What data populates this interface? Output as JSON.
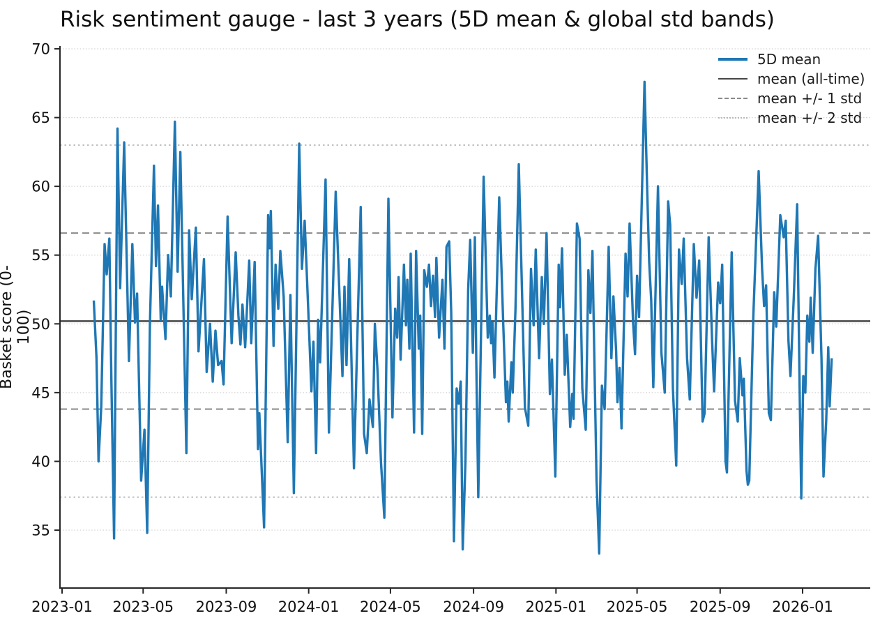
{
  "chart_data": {
    "type": "line",
    "title": "Risk sentiment gauge - last 3 years (5D mean & global std bands)",
    "ylabel": "Basket score (0-100)",
    "xlabel": "",
    "grid": "horizontal-dotted",
    "legend_position": "upper right",
    "ylim": [
      30.9,
      70.4
    ],
    "y_ticks": [
      35,
      40,
      45,
      50,
      55,
      60,
      65,
      70
    ],
    "x_tick_labels": [
      "2023-01",
      "2023-05",
      "2023-09",
      "2024-01",
      "2024-05",
      "2024-09",
      "2025-01",
      "2025-05",
      "2025-09",
      "2026-01"
    ],
    "stats": {
      "mean_all_time": 50.2,
      "std_all_time": 6.4,
      "mean_plus_1std": 56.6,
      "mean_minus_1std": 43.8,
      "mean_plus_2std": 63.0,
      "mean_minus_2std": 37.4
    },
    "legend": {
      "items": [
        {
          "label": "5D mean",
          "style": "solid-blue"
        },
        {
          "label": "mean (all-time)",
          "style": "solid-gray"
        },
        {
          "label": "mean +/- 1 std",
          "style": "dashed-gray"
        },
        {
          "label": "mean +/- 2 std",
          "style": "dotted-lightgray"
        }
      ]
    },
    "colors": {
      "series": "#1f77b4",
      "mean_line": "#454545",
      "std1_line": "#8a8a8a",
      "std2_line": "#b8b8b8",
      "gridline": "#d2d2d2",
      "axis": "#262626",
      "text": "#111111"
    },
    "series": [
      {
        "name": "5D mean",
        "points": [
          [
            "2023-02-17",
            51.7
          ],
          [
            "2023-02-21",
            47.5
          ],
          [
            "2023-02-24",
            40.0
          ],
          [
            "2023-02-28",
            44.0
          ],
          [
            "2023-03-05",
            55.8
          ],
          [
            "2023-03-08",
            53.6
          ],
          [
            "2023-03-12",
            56.2
          ],
          [
            "2023-03-15",
            46.0
          ],
          [
            "2023-03-19",
            34.4
          ],
          [
            "2023-03-24",
            64.2
          ],
          [
            "2023-03-28",
            52.6
          ],
          [
            "2023-04-03",
            63.2
          ],
          [
            "2023-04-07",
            54.0
          ],
          [
            "2023-04-10",
            47.3
          ],
          [
            "2023-04-15",
            55.8
          ],
          [
            "2023-04-19",
            50.1
          ],
          [
            "2023-04-22",
            52.2
          ],
          [
            "2023-04-28",
            38.6
          ],
          [
            "2023-05-03",
            42.3
          ],
          [
            "2023-05-07",
            34.8
          ],
          [
            "2023-05-11",
            50.0
          ],
          [
            "2023-05-17",
            61.5
          ],
          [
            "2023-05-20",
            54.2
          ],
          [
            "2023-05-23",
            58.6
          ],
          [
            "2023-05-27",
            50.3
          ],
          [
            "2023-05-29",
            52.7
          ],
          [
            "2023-06-03",
            48.9
          ],
          [
            "2023-06-07",
            55.0
          ],
          [
            "2023-06-11",
            52.0
          ],
          [
            "2023-06-17",
            64.7
          ],
          [
            "2023-06-21",
            53.8
          ],
          [
            "2023-06-25",
            62.5
          ],
          [
            "2023-07-04",
            40.6
          ],
          [
            "2023-07-08",
            56.8
          ],
          [
            "2023-07-12",
            51.8
          ],
          [
            "2023-07-18",
            57.0
          ],
          [
            "2023-07-22",
            48.0
          ],
          [
            "2023-07-30",
            54.7
          ],
          [
            "2023-08-03",
            46.5
          ],
          [
            "2023-08-08",
            50.0
          ],
          [
            "2023-08-12",
            45.8
          ],
          [
            "2023-08-16",
            49.5
          ],
          [
            "2023-08-20",
            47.0
          ],
          [
            "2023-08-25",
            47.3
          ],
          [
            "2023-08-28",
            45.6
          ],
          [
            "2023-09-03",
            57.8
          ],
          [
            "2023-09-09",
            48.6
          ],
          [
            "2023-09-15",
            55.2
          ],
          [
            "2023-09-19",
            50.6
          ],
          [
            "2023-09-22",
            48.5
          ],
          [
            "2023-09-25",
            51.4
          ],
          [
            "2023-09-29",
            48.3
          ],
          [
            "2023-10-05",
            54.6
          ],
          [
            "2023-10-08",
            48.6
          ],
          [
            "2023-10-13",
            54.5
          ],
          [
            "2023-10-18",
            40.9
          ],
          [
            "2023-10-20",
            43.5
          ],
          [
            "2023-10-27",
            35.2
          ],
          [
            "2023-11-02",
            57.9
          ],
          [
            "2023-11-04",
            55.5
          ],
          [
            "2023-11-06",
            58.2
          ],
          [
            "2023-11-10",
            48.4
          ],
          [
            "2023-11-13",
            54.3
          ],
          [
            "2023-11-17",
            51.1
          ],
          [
            "2023-11-20",
            55.3
          ],
          [
            "2023-11-25",
            52.0
          ],
          [
            "2023-12-01",
            41.4
          ],
          [
            "2023-12-05",
            52.1
          ],
          [
            "2023-12-10",
            37.7
          ],
          [
            "2023-12-18",
            63.1
          ],
          [
            "2023-12-22",
            54.0
          ],
          [
            "2023-12-26",
            57.5
          ],
          [
            "2023-12-29",
            53.9
          ],
          [
            "2024-01-01",
            50.2
          ],
          [
            "2024-01-05",
            45.1
          ],
          [
            "2024-01-08",
            48.7
          ],
          [
            "2024-01-12",
            40.6
          ],
          [
            "2024-01-15",
            50.3
          ],
          [
            "2024-01-18",
            47.2
          ],
          [
            "2024-01-26",
            60.5
          ],
          [
            "2024-01-31",
            42.1
          ],
          [
            "2024-02-10",
            59.6
          ],
          [
            "2024-02-20",
            46.2
          ],
          [
            "2024-02-23",
            52.7
          ],
          [
            "2024-02-26",
            47.0
          ],
          [
            "2024-03-01",
            54.7
          ],
          [
            "2024-03-05",
            45.8
          ],
          [
            "2024-03-08",
            39.5
          ],
          [
            "2024-03-18",
            58.5
          ],
          [
            "2024-03-23",
            42.0
          ],
          [
            "2024-03-27",
            40.6
          ],
          [
            "2024-03-31",
            44.5
          ],
          [
            "2024-04-05",
            42.5
          ],
          [
            "2024-04-08",
            50.0
          ],
          [
            "2024-04-12",
            46.5
          ],
          [
            "2024-04-17",
            39.9
          ],
          [
            "2024-04-22",
            35.9
          ],
          [
            "2024-04-28",
            59.1
          ],
          [
            "2024-05-04",
            43.2
          ],
          [
            "2024-05-08",
            51.1
          ],
          [
            "2024-05-11",
            49.0
          ],
          [
            "2024-05-13",
            53.4
          ],
          [
            "2024-05-16",
            47.4
          ],
          [
            "2024-05-21",
            54.3
          ],
          [
            "2024-05-24",
            49.9
          ],
          [
            "2024-05-26",
            53.2
          ],
          [
            "2024-05-29",
            48.2
          ],
          [
            "2024-05-31",
            55.1
          ],
          [
            "2024-06-05",
            42.1
          ],
          [
            "2024-06-08",
            55.3
          ],
          [
            "2024-06-12",
            48.2
          ],
          [
            "2024-06-14",
            50.6
          ],
          [
            "2024-06-17",
            42.0
          ],
          [
            "2024-06-20",
            53.9
          ],
          [
            "2024-06-24",
            52.7
          ],
          [
            "2024-06-27",
            54.3
          ],
          [
            "2024-06-30",
            51.3
          ],
          [
            "2024-07-03",
            53.5
          ],
          [
            "2024-07-06",
            50.5
          ],
          [
            "2024-07-08",
            54.8
          ],
          [
            "2024-07-12",
            49.0
          ],
          [
            "2024-07-17",
            53.2
          ],
          [
            "2024-07-20",
            48.2
          ],
          [
            "2024-07-23",
            55.6
          ],
          [
            "2024-07-27",
            56.0
          ],
          [
            "2024-07-30",
            50.8
          ],
          [
            "2024-08-03",
            34.2
          ],
          [
            "2024-08-07",
            45.3
          ],
          [
            "2024-08-10",
            44.2
          ],
          [
            "2024-08-13",
            45.8
          ],
          [
            "2024-08-16",
            33.6
          ],
          [
            "2024-08-20",
            40.0
          ],
          [
            "2024-08-24",
            52.5
          ],
          [
            "2024-08-27",
            56.1
          ],
          [
            "2024-08-31",
            47.9
          ],
          [
            "2024-09-03",
            56.3
          ],
          [
            "2024-09-05",
            47.4
          ],
          [
            "2024-09-08",
            37.4
          ],
          [
            "2024-09-16",
            60.7
          ],
          [
            "2024-09-22",
            49.0
          ],
          [
            "2024-09-25",
            50.6
          ],
          [
            "2024-09-27",
            48.6
          ],
          [
            "2024-09-29",
            50.1
          ],
          [
            "2024-10-02",
            46.1
          ],
          [
            "2024-10-09",
            59.2
          ],
          [
            "2024-10-15",
            50.0
          ],
          [
            "2024-10-19",
            44.3
          ],
          [
            "2024-10-21",
            45.8
          ],
          [
            "2024-10-23",
            42.9
          ],
          [
            "2024-10-27",
            47.2
          ],
          [
            "2024-10-29",
            45.0
          ],
          [
            "2024-11-02",
            51.0
          ],
          [
            "2024-11-07",
            61.6
          ],
          [
            "2024-11-13",
            50.0
          ],
          [
            "2024-11-16",
            43.9
          ],
          [
            "2024-11-21",
            42.6
          ],
          [
            "2024-11-25",
            54.0
          ],
          [
            "2024-11-29",
            49.9
          ],
          [
            "2024-12-02",
            55.4
          ],
          [
            "2024-12-07",
            47.5
          ],
          [
            "2024-12-11",
            53.4
          ],
          [
            "2024-12-14",
            50.0
          ],
          [
            "2024-12-18",
            56.6
          ],
          [
            "2024-12-23",
            44.9
          ],
          [
            "2024-12-26",
            47.4
          ],
          [
            "2024-12-31",
            38.9
          ],
          [
            "2025-01-05",
            54.3
          ],
          [
            "2025-01-07",
            51.2
          ],
          [
            "2025-01-10",
            55.5
          ],
          [
            "2025-01-14",
            46.3
          ],
          [
            "2025-01-17",
            49.2
          ],
          [
            "2025-01-22",
            42.5
          ],
          [
            "2025-01-25",
            44.9
          ],
          [
            "2025-01-27",
            43.1
          ],
          [
            "2025-02-01",
            57.3
          ],
          [
            "2025-02-05",
            56.2
          ],
          [
            "2025-02-09",
            45.3
          ],
          [
            "2025-02-14",
            42.3
          ],
          [
            "2025-02-18",
            53.9
          ],
          [
            "2025-02-21",
            50.8
          ],
          [
            "2025-02-24",
            55.3
          ],
          [
            "2025-03-02",
            38.6
          ],
          [
            "2025-03-06",
            33.3
          ],
          [
            "2025-03-10",
            45.5
          ],
          [
            "2025-03-14",
            43.8
          ],
          [
            "2025-03-20",
            55.6
          ],
          [
            "2025-03-24",
            47.5
          ],
          [
            "2025-03-27",
            52.0
          ],
          [
            "2025-03-31",
            48.0
          ],
          [
            "2025-04-02",
            44.3
          ],
          [
            "2025-04-05",
            46.8
          ],
          [
            "2025-04-08",
            42.4
          ],
          [
            "2025-04-14",
            55.1
          ],
          [
            "2025-04-17",
            52.0
          ],
          [
            "2025-04-20",
            57.3
          ],
          [
            "2025-04-25",
            50.2
          ],
          [
            "2025-04-28",
            47.8
          ],
          [
            "2025-05-01",
            53.5
          ],
          [
            "2025-05-04",
            50.5
          ],
          [
            "2025-05-12",
            67.6
          ],
          [
            "2025-05-16",
            59.8
          ],
          [
            "2025-05-19",
            54.5
          ],
          [
            "2025-05-22",
            51.7
          ],
          [
            "2025-05-25",
            45.4
          ],
          [
            "2025-06-01",
            60.0
          ],
          [
            "2025-06-06",
            47.9
          ],
          [
            "2025-06-11",
            45.0
          ],
          [
            "2025-06-16",
            58.9
          ],
          [
            "2025-06-19",
            57.2
          ],
          [
            "2025-06-23",
            45.3
          ],
          [
            "2025-06-28",
            39.7
          ],
          [
            "2025-07-02",
            55.4
          ],
          [
            "2025-07-06",
            52.9
          ],
          [
            "2025-07-09",
            56.2
          ],
          [
            "2025-07-14",
            47.5
          ],
          [
            "2025-07-18",
            44.5
          ],
          [
            "2025-07-24",
            55.8
          ],
          [
            "2025-07-28",
            51.9
          ],
          [
            "2025-08-01",
            54.6
          ],
          [
            "2025-08-06",
            42.9
          ],
          [
            "2025-08-09",
            43.5
          ],
          [
            "2025-08-15",
            56.3
          ],
          [
            "2025-08-20",
            48.8
          ],
          [
            "2025-08-23",
            45.1
          ],
          [
            "2025-08-29",
            53.0
          ],
          [
            "2025-09-01",
            51.5
          ],
          [
            "2025-09-04",
            54.3
          ],
          [
            "2025-09-09",
            40.0
          ],
          [
            "2025-09-11",
            39.2
          ],
          [
            "2025-09-18",
            55.2
          ],
          [
            "2025-09-23",
            44.4
          ],
          [
            "2025-09-27",
            42.9
          ],
          [
            "2025-09-30",
            47.5
          ],
          [
            "2025-10-04",
            44.8
          ],
          [
            "2025-10-06",
            46.0
          ],
          [
            "2025-10-10",
            39.3
          ],
          [
            "2025-10-12",
            38.3
          ],
          [
            "2025-10-14",
            38.6
          ],
          [
            "2025-10-20",
            50.5
          ],
          [
            "2025-10-28",
            61.1
          ],
          [
            "2025-11-02",
            54.0
          ],
          [
            "2025-11-05",
            51.3
          ],
          [
            "2025-11-08",
            52.8
          ],
          [
            "2025-11-12",
            43.5
          ],
          [
            "2025-11-15",
            43.0
          ],
          [
            "2025-11-20",
            52.3
          ],
          [
            "2025-11-23",
            49.8
          ],
          [
            "2025-11-29",
            57.9
          ],
          [
            "2025-12-04",
            56.3
          ],
          [
            "2025-12-07",
            57.5
          ],
          [
            "2025-12-11",
            48.8
          ],
          [
            "2025-12-14",
            46.2
          ],
          [
            "2025-12-19",
            52.0
          ],
          [
            "2025-12-24",
            58.7
          ],
          [
            "2025-12-28",
            44.0
          ],
          [
            "2025-12-30",
            37.3
          ],
          [
            "2026-01-02",
            46.2
          ],
          [
            "2026-01-05",
            45.0
          ],
          [
            "2026-01-08",
            50.6
          ],
          [
            "2026-01-11",
            48.7
          ],
          [
            "2026-01-13",
            51.9
          ],
          [
            "2026-01-16",
            47.9
          ],
          [
            "2026-01-20",
            54.0
          ],
          [
            "2026-01-24",
            56.4
          ],
          [
            "2026-01-29",
            47.5
          ],
          [
            "2026-02-01",
            38.9
          ],
          [
            "2026-02-05",
            43.0
          ],
          [
            "2026-02-08",
            48.3
          ],
          [
            "2026-02-10",
            44.0
          ],
          [
            "2026-02-13",
            47.5
          ]
        ]
      }
    ]
  }
}
